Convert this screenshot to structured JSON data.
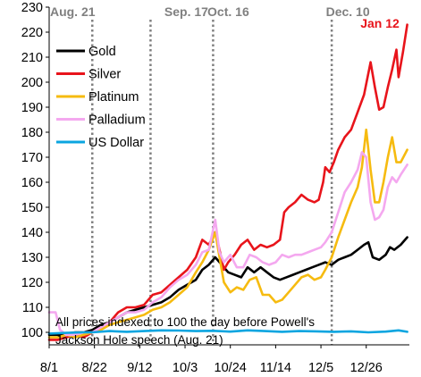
{
  "chart_data": {
    "type": "line",
    "title": "",
    "xlabel": "",
    "ylabel": "",
    "ylim": [
      95,
      230
    ],
    "yticks": [
      100,
      110,
      120,
      130,
      140,
      150,
      160,
      170,
      180,
      190,
      200,
      210,
      220,
      230
    ],
    "x_range_days": [
      0,
      167
    ],
    "xticks": [
      {
        "label": "8/1",
        "day": 0
      },
      {
        "label": "8/22",
        "day": 21
      },
      {
        "label": "9/12",
        "day": 42
      },
      {
        "label": "10/3",
        "day": 63
      },
      {
        "label": "10/24",
        "day": 84
      },
      {
        "label": "11/14",
        "day": 105
      },
      {
        "label": "12/5",
        "day": 126
      },
      {
        "label": "12/26",
        "day": 147
      }
    ],
    "grid": false,
    "legend_position": "top-left",
    "events": [
      {
        "label": "Aug. 21",
        "day": 20,
        "color": "#808080"
      },
      {
        "label": "Sep. 17",
        "day": 47,
        "color": "#808080"
      },
      {
        "label": "Oct. 16",
        "day": 76,
        "color": "#808080"
      },
      {
        "label": "Dec. 10",
        "day": 131,
        "color": "#808080"
      },
      {
        "label": "Jan 12",
        "day": 164,
        "color": "#e8141b"
      }
    ],
    "annotation": {
      "line1": "All prices indexed to 100 the day before Powell's",
      "line2": "Jackson Hole speech (Aug. 21)"
    },
    "series": [
      {
        "name": "Gold",
        "color": "#000000",
        "points": [
          [
            0,
            99
          ],
          [
            4,
            99
          ],
          [
            8,
            99.5
          ],
          [
            12,
            100
          ],
          [
            16,
            100
          ],
          [
            20,
            101
          ],
          [
            24,
            103
          ],
          [
            28,
            104
          ],
          [
            32,
            106
          ],
          [
            36,
            108
          ],
          [
            40,
            109
          ],
          [
            44,
            110
          ],
          [
            48,
            111
          ],
          [
            52,
            112
          ],
          [
            56,
            114
          ],
          [
            60,
            117
          ],
          [
            64,
            119
          ],
          [
            68,
            121
          ],
          [
            71,
            125
          ],
          [
            74,
            127
          ],
          [
            77,
            130
          ],
          [
            80,
            127
          ],
          [
            83,
            124
          ],
          [
            86,
            123
          ],
          [
            89,
            122
          ],
          [
            92,
            126
          ],
          [
            95,
            124
          ],
          [
            98,
            126
          ],
          [
            101,
            124
          ],
          [
            104,
            122
          ],
          [
            107,
            121
          ],
          [
            110,
            122
          ],
          [
            113,
            123
          ],
          [
            116,
            124
          ],
          [
            119,
            125
          ],
          [
            122,
            126
          ],
          [
            125,
            127
          ],
          [
            128,
            128
          ],
          [
            131,
            127
          ],
          [
            134,
            129
          ],
          [
            137,
            130
          ],
          [
            140,
            131
          ],
          [
            143,
            133
          ],
          [
            146,
            135
          ],
          [
            148,
            136
          ],
          [
            150,
            130
          ],
          [
            153,
            129
          ],
          [
            156,
            131
          ],
          [
            158,
            134
          ],
          [
            160,
            133
          ],
          [
            163,
            135
          ],
          [
            166,
            138
          ]
        ]
      },
      {
        "name": "Silver",
        "color": "#e8141b",
        "points": [
          [
            0,
            97
          ],
          [
            4,
            97
          ],
          [
            8,
            98
          ],
          [
            12,
            99
          ],
          [
            16,
            98
          ],
          [
            20,
            100
          ],
          [
            24,
            102
          ],
          [
            28,
            104
          ],
          [
            32,
            108
          ],
          [
            36,
            110
          ],
          [
            40,
            110
          ],
          [
            44,
            111
          ],
          [
            48,
            115
          ],
          [
            52,
            116
          ],
          [
            56,
            119
          ],
          [
            60,
            122
          ],
          [
            64,
            125
          ],
          [
            68,
            130
          ],
          [
            71,
            137
          ],
          [
            74,
            135
          ],
          [
            77,
            140
          ],
          [
            79,
            133
          ],
          [
            81,
            125
          ],
          [
            83,
            128
          ],
          [
            86,
            131
          ],
          [
            89,
            135
          ],
          [
            92,
            137
          ],
          [
            95,
            133
          ],
          [
            98,
            135
          ],
          [
            101,
            134
          ],
          [
            104,
            135
          ],
          [
            107,
            137
          ],
          [
            109,
            148
          ],
          [
            111,
            150
          ],
          [
            114,
            152
          ],
          [
            117,
            155
          ],
          [
            120,
            153
          ],
          [
            123,
            152
          ],
          [
            125,
            153
          ],
          [
            127,
            160
          ],
          [
            128,
            166
          ],
          [
            130,
            164
          ],
          [
            132,
            168
          ],
          [
            134,
            173
          ],
          [
            137,
            178
          ],
          [
            140,
            181
          ],
          [
            143,
            188
          ],
          [
            146,
            195
          ],
          [
            149,
            208
          ],
          [
            151,
            198
          ],
          [
            153,
            189
          ],
          [
            155,
            190
          ],
          [
            157,
            198
          ],
          [
            159,
            205
          ],
          [
            161,
            213
          ],
          [
            162,
            202
          ],
          [
            164,
            212
          ],
          [
            166,
            223
          ]
        ]
      },
      {
        "name": "Platinum",
        "color": "#f6bb10",
        "points": [
          [
            0,
            98
          ],
          [
            4,
            98
          ],
          [
            8,
            99
          ],
          [
            12,
            98
          ],
          [
            16,
            99
          ],
          [
            20,
            100
          ],
          [
            24,
            101
          ],
          [
            28,
            103
          ],
          [
            32,
            104
          ],
          [
            36,
            105
          ],
          [
            40,
            106
          ],
          [
            44,
            107
          ],
          [
            48,
            109
          ],
          [
            52,
            110
          ],
          [
            56,
            112
          ],
          [
            60,
            115
          ],
          [
            64,
            118
          ],
          [
            68,
            124
          ],
          [
            71,
            128
          ],
          [
            74,
            133
          ],
          [
            77,
            140
          ],
          [
            79,
            130
          ],
          [
            81,
            120
          ],
          [
            84,
            116
          ],
          [
            87,
            118
          ],
          [
            90,
            117
          ],
          [
            93,
            121
          ],
          [
            96,
            122
          ],
          [
            99,
            115
          ],
          [
            102,
            115
          ],
          [
            105,
            112
          ],
          [
            108,
            113
          ],
          [
            111,
            116
          ],
          [
            114,
            119
          ],
          [
            117,
            122
          ],
          [
            120,
            123
          ],
          [
            123,
            121
          ],
          [
            126,
            122
          ],
          [
            128,
            125
          ],
          [
            131,
            130
          ],
          [
            134,
            138
          ],
          [
            137,
            145
          ],
          [
            140,
            152
          ],
          [
            143,
            158
          ],
          [
            145,
            166
          ],
          [
            147,
            181
          ],
          [
            149,
            165
          ],
          [
            151,
            152
          ],
          [
            153,
            152
          ],
          [
            155,
            160
          ],
          [
            157,
            170
          ],
          [
            159,
            178
          ],
          [
            161,
            168
          ],
          [
            163,
            168
          ],
          [
            166,
            173
          ]
        ]
      },
      {
        "name": "Palladium",
        "color": "#f4a8ef",
        "points": [
          [
            0,
            108
          ],
          [
            3,
            108
          ],
          [
            5,
            101
          ],
          [
            8,
            99
          ],
          [
            12,
            99
          ],
          [
            16,
            100
          ],
          [
            20,
            100
          ],
          [
            24,
            102
          ],
          [
            28,
            104
          ],
          [
            32,
            106
          ],
          [
            36,
            108
          ],
          [
            40,
            108
          ],
          [
            44,
            109
          ],
          [
            48,
            112
          ],
          [
            52,
            114
          ],
          [
            56,
            118
          ],
          [
            60,
            121
          ],
          [
            64,
            123
          ],
          [
            68,
            127
          ],
          [
            71,
            132
          ],
          [
            74,
            133
          ],
          [
            77,
            145
          ],
          [
            79,
            132
          ],
          [
            81,
            128
          ],
          [
            84,
            131
          ],
          [
            87,
            126
          ],
          [
            90,
            126
          ],
          [
            93,
            131
          ],
          [
            96,
            130
          ],
          [
            99,
            128
          ],
          [
            102,
            127
          ],
          [
            105,
            128
          ],
          [
            108,
            131
          ],
          [
            111,
            130
          ],
          [
            114,
            131
          ],
          [
            117,
            131
          ],
          [
            120,
            132
          ],
          [
            123,
            133
          ],
          [
            126,
            134
          ],
          [
            128,
            136
          ],
          [
            131,
            140
          ],
          [
            134,
            148
          ],
          [
            137,
            156
          ],
          [
            140,
            160
          ],
          [
            143,
            165
          ],
          [
            145,
            172
          ],
          [
            147,
            170
          ],
          [
            149,
            152
          ],
          [
            151,
            145
          ],
          [
            153,
            146
          ],
          [
            155,
            149
          ],
          [
            157,
            158
          ],
          [
            159,
            162
          ],
          [
            161,
            160
          ],
          [
            163,
            163
          ],
          [
            166,
            167
          ]
        ]
      },
      {
        "name": "US Dollar",
        "color": "#0ba5e0",
        "points": [
          [
            0,
            99.5
          ],
          [
            8,
            99.8
          ],
          [
            16,
            100
          ],
          [
            20,
            100
          ],
          [
            28,
            100.5
          ],
          [
            36,
            100.2
          ],
          [
            44,
            100.5
          ],
          [
            52,
            100.8
          ],
          [
            60,
            100.7
          ],
          [
            68,
            100.5
          ],
          [
            76,
            100.6
          ],
          [
            84,
            100.3
          ],
          [
            92,
            100.8
          ],
          [
            100,
            100.5
          ],
          [
            108,
            100.2
          ],
          [
            116,
            100.5
          ],
          [
            124,
            100.4
          ],
          [
            132,
            100.2
          ],
          [
            140,
            100.4
          ],
          [
            148,
            100
          ],
          [
            156,
            100.3
          ],
          [
            162,
            100.8
          ],
          [
            166,
            100.2
          ]
        ]
      }
    ]
  }
}
